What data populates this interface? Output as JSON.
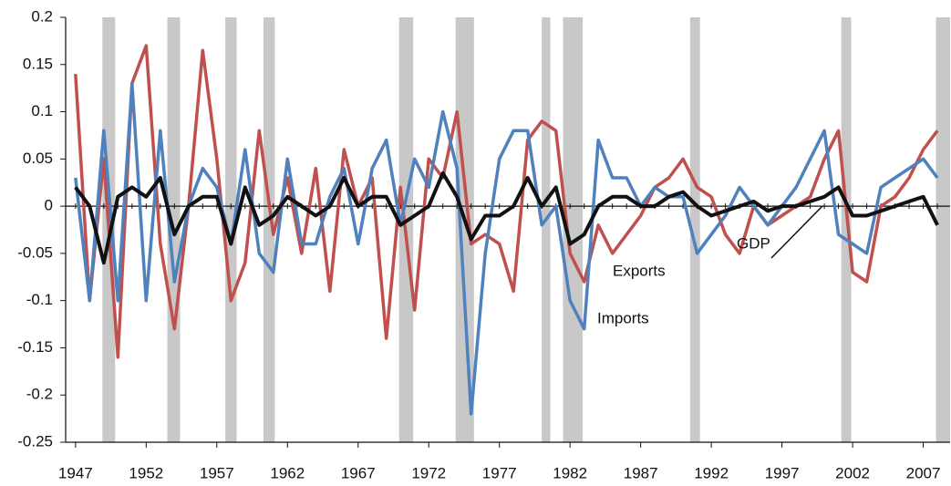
{
  "chart_data": {
    "type": "line",
    "x": [
      1947,
      1948,
      1949,
      1950,
      1951,
      1952,
      1953,
      1954,
      1955,
      1956,
      1957,
      1958,
      1959,
      1960,
      1961,
      1962,
      1963,
      1964,
      1965,
      1966,
      1967,
      1968,
      1969,
      1970,
      1971,
      1972,
      1973,
      1974,
      1975,
      1976,
      1977,
      1978,
      1979,
      1980,
      1981,
      1982,
      1983,
      1984,
      1985,
      1986,
      1987,
      1988,
      1989,
      1990,
      1991,
      1992,
      1993,
      1994,
      1995,
      1996,
      1997,
      1998,
      1999,
      2000,
      2001,
      2002,
      2003,
      2004,
      2005,
      2006,
      2007,
      2008
    ],
    "series": [
      {
        "name": "Exports",
        "color": "#c0504d",
        "values": [
          0.14,
          -0.1,
          0.05,
          -0.16,
          0.13,
          0.17,
          -0.04,
          -0.13,
          0.0,
          0.165,
          0.05,
          -0.1,
          -0.06,
          0.08,
          -0.03,
          0.03,
          -0.05,
          0.04,
          -0.09,
          0.06,
          0.0,
          0.03,
          -0.14,
          0.02,
          -0.11,
          0.05,
          0.03,
          0.1,
          -0.04,
          -0.03,
          -0.04,
          -0.09,
          0.07,
          0.09,
          0.08,
          -0.05,
          -0.08,
          -0.02,
          -0.05,
          -0.03,
          -0.01,
          0.02,
          0.03,
          0.05,
          0.02,
          0.01,
          -0.03,
          -0.05,
          0.0,
          -0.02,
          -0.01,
          0.0,
          0.01,
          0.05,
          0.08,
          -0.07,
          -0.08,
          0.0,
          0.01,
          0.03,
          0.06,
          0.08
        ]
      },
      {
        "name": "Imports",
        "color": "#4f81bd",
        "values": [
          0.03,
          -0.1,
          0.08,
          -0.1,
          0.13,
          -0.1,
          0.08,
          -0.08,
          0.0,
          0.04,
          0.02,
          -0.04,
          0.06,
          -0.05,
          -0.07,
          0.05,
          -0.04,
          -0.04,
          0.01,
          0.04,
          -0.04,
          0.04,
          0.07,
          -0.02,
          0.05,
          0.02,
          0.1,
          0.04,
          -0.22,
          -0.05,
          0.05,
          0.08,
          0.08,
          -0.02,
          0.0,
          -0.1,
          -0.13,
          0.07,
          0.03,
          0.03,
          0.0,
          0.02,
          0.01,
          0.01,
          -0.05,
          -0.03,
          -0.01,
          0.02,
          0.0,
          -0.02,
          0.0,
          0.02,
          0.05,
          0.08,
          -0.03,
          -0.04,
          -0.05,
          0.02,
          0.03,
          0.04,
          0.05,
          0.03
        ]
      },
      {
        "name": "GDP",
        "color": "#111111",
        "values": [
          0.02,
          0.0,
          -0.06,
          0.01,
          0.02,
          0.01,
          0.03,
          -0.03,
          0.0,
          0.01,
          0.01,
          -0.04,
          0.02,
          -0.02,
          -0.01,
          0.01,
          0.0,
          -0.01,
          0.0,
          0.03,
          0.0,
          0.01,
          0.01,
          -0.02,
          -0.01,
          0.0,
          0.035,
          0.01,
          -0.035,
          -0.01,
          -0.01,
          0.0,
          0.03,
          0.0,
          0.02,
          -0.04,
          -0.03,
          0.0,
          0.01,
          0.01,
          0.0,
          0.0,
          0.01,
          0.015,
          0.0,
          -0.01,
          -0.005,
          0.0,
          0.005,
          -0.005,
          0.0,
          0.0,
          0.005,
          0.01,
          0.02,
          -0.01,
          -0.01,
          -0.005,
          0.0,
          0.005,
          0.01,
          -0.02
        ]
      }
    ],
    "shaded_periods": [
      [
        1948.9,
        1949.8
      ],
      [
        1953.5,
        1954.4
      ],
      [
        1957.6,
        1958.4
      ],
      [
        1960.3,
        1961.1
      ],
      [
        1969.9,
        1970.9
      ],
      [
        1973.9,
        1975.2
      ],
      [
        1980.0,
        1980.6
      ],
      [
        1981.5,
        1982.9
      ],
      [
        1990.5,
        1991.2
      ],
      [
        2001.2,
        2001.9
      ],
      [
        2007.9,
        2009.0
      ]
    ],
    "shade_color": "#c8c8c8",
    "xlim": [
      1946.3,
      2008.9
    ],
    "xticks": [
      1947,
      1952,
      1957,
      1962,
      1967,
      1972,
      1977,
      1982,
      1987,
      1992,
      1997,
      2002,
      2007
    ],
    "ylim": [
      -0.25,
      0.2
    ],
    "yticks": [
      -0.25,
      -0.2,
      -0.15,
      -0.1,
      -0.05,
      0,
      0.05,
      0.1,
      0.15,
      0.2
    ]
  }
}
